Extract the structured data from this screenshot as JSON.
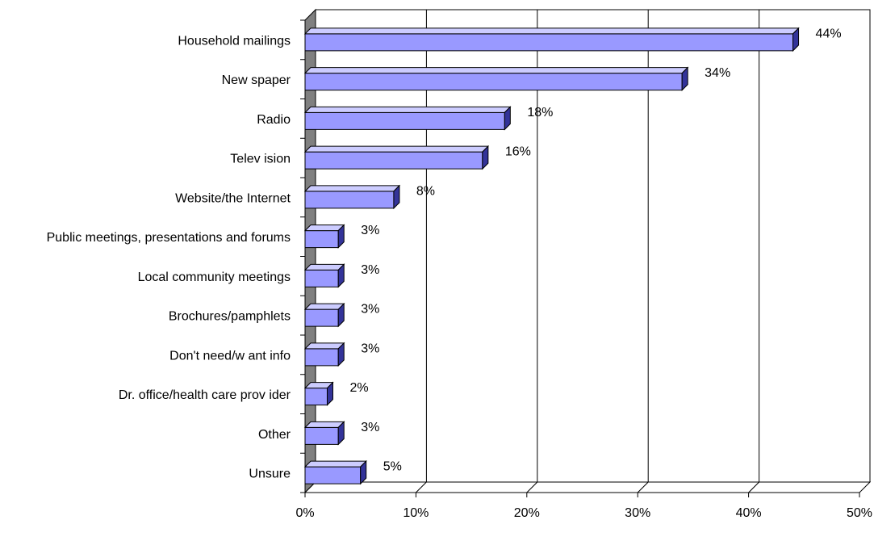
{
  "chart_data": {
    "type": "bar",
    "orientation": "horizontal",
    "style": "3d",
    "categories": [
      "Household mailings",
      "New spaper",
      "Radio",
      "Telev ision",
      "Website/the Internet",
      "Public meetings, presentations and forums",
      "Local community  meetings",
      "Brochures/pamphlets",
      "Don't need/w ant info",
      "Dr. office/health care prov ider",
      "Other",
      "Unsure"
    ],
    "values": [
      44,
      34,
      18,
      16,
      8,
      3,
      3,
      3,
      3,
      2,
      3,
      5
    ],
    "value_labels": [
      "44%",
      "34%",
      "18%",
      "16%",
      "8%",
      "3%",
      "3%",
      "3%",
      "3%",
      "2%",
      "3%",
      "5%"
    ],
    "xlim": [
      0,
      50
    ],
    "xticks": [
      0,
      10,
      20,
      30,
      40,
      50
    ],
    "xtick_labels": [
      "0%",
      "10%",
      "20%",
      "30%",
      "40%",
      "50%"
    ],
    "grid": true,
    "legend": "none",
    "colors": {
      "bar_front": "#9999ff",
      "bar_top": "#ccccff",
      "bar_side": "#333399",
      "wall": "#808080",
      "grid": "#000000"
    }
  }
}
